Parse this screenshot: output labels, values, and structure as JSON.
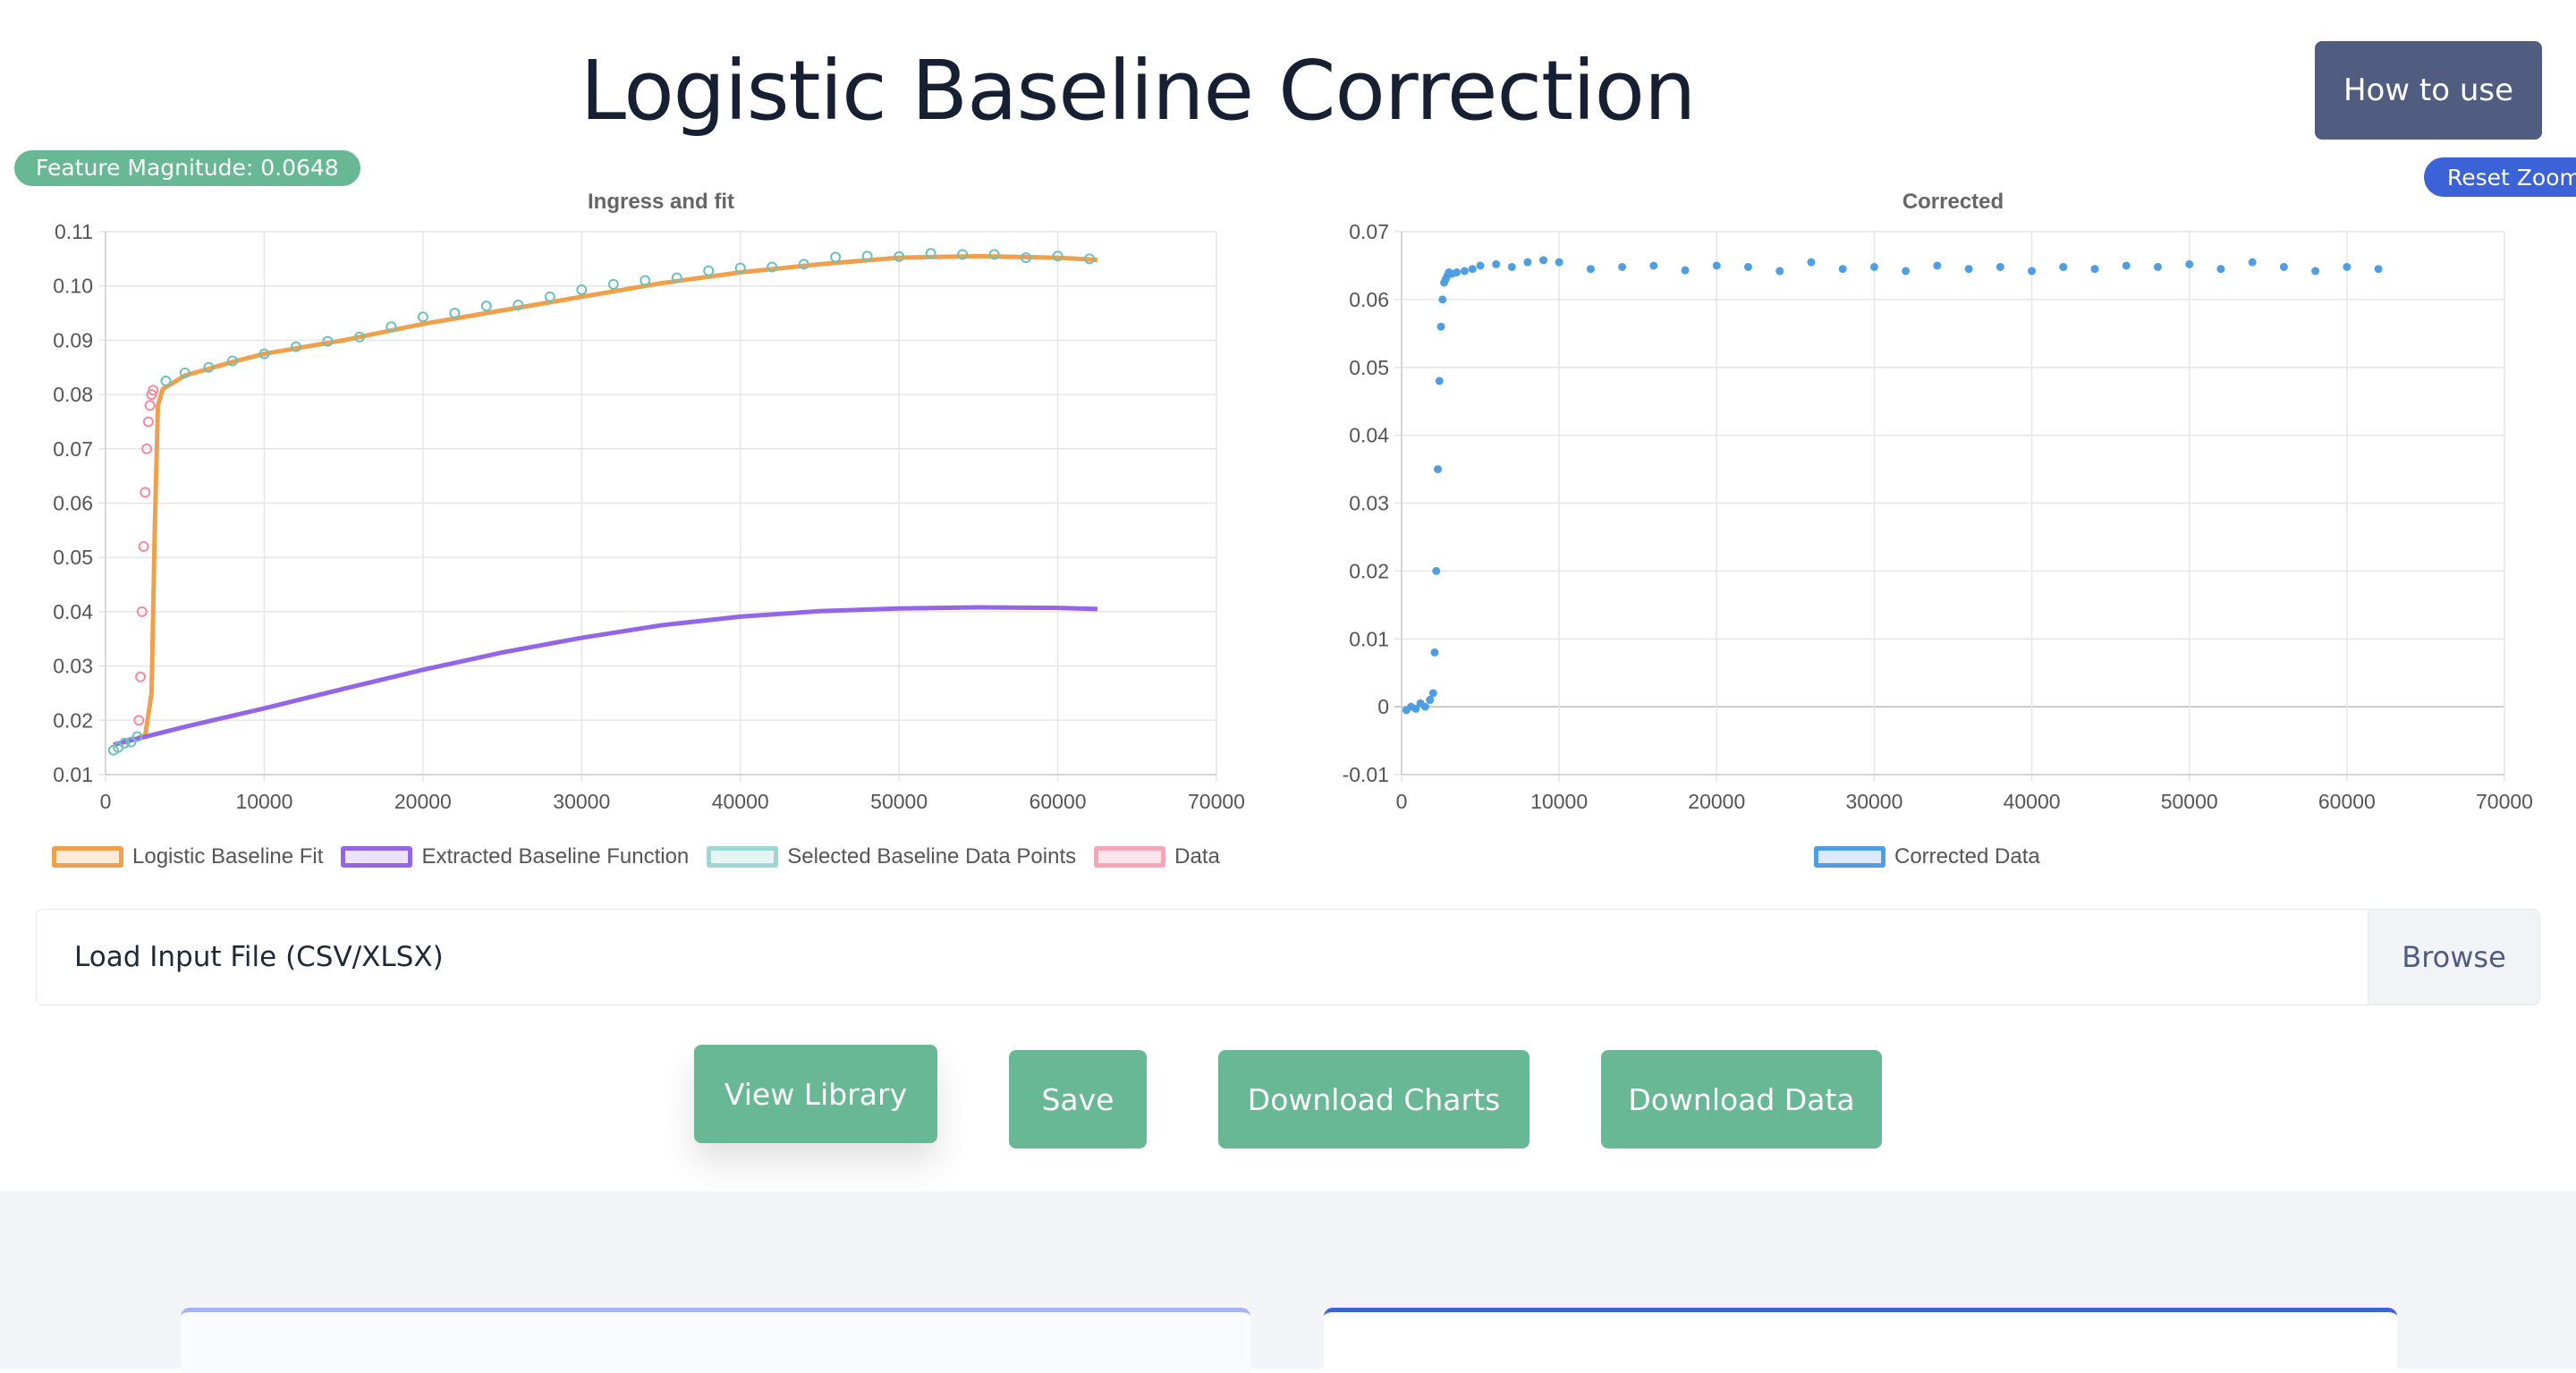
{
  "header": {
    "title": "Logistic Baseline Correction",
    "how_to_label": "How to use"
  },
  "feature_badge": "Feature Magnitude: 0.0648",
  "reset_zoom_label": "Reset Zoom",
  "file_input": {
    "label": "Load Input File (CSV/XLSX)",
    "browse_label": "Browse"
  },
  "actions": {
    "view_library": "View Library",
    "save": "Save",
    "download_charts": "Download Charts",
    "download_data": "Download Data"
  },
  "colors": {
    "logistic_fit": "#f0a04b",
    "extracted_baseline": "#9465e8",
    "selected_points": "#6fbfbd",
    "data": "#f08ca0",
    "corrected": "#4f9ee3"
  },
  "chart_data": [
    {
      "type": "scatter",
      "title": "Ingress and fit",
      "xlim": [
        0,
        70000
      ],
      "ylim": [
        0.01,
        0.11
      ],
      "xticks": [
        "0",
        "10000",
        "20000",
        "30000",
        "40000",
        "50000",
        "60000",
        "70000"
      ],
      "yticks": [
        "0.01",
        "0.02",
        "0.03",
        "0.04",
        "0.05",
        "0.06",
        "0.07",
        "0.08",
        "0.09",
        "0.10",
        "0.11"
      ],
      "grid": true,
      "legend_position": "bottom",
      "series": [
        {
          "name": "Logistic Baseline Fit",
          "kind": "line",
          "x": [
            500,
            1500,
            2500,
            2900,
            3100,
            3300,
            3600,
            5000,
            8000,
            10000,
            15000,
            20000,
            25000,
            30000,
            35000,
            40000,
            45000,
            50000,
            55000,
            60000,
            62500
          ],
          "y": [
            0.0155,
            0.0162,
            0.0172,
            0.025,
            0.055,
            0.078,
            0.081,
            0.0835,
            0.086,
            0.0875,
            0.09,
            0.093,
            0.0955,
            0.098,
            0.1005,
            0.1025,
            0.104,
            0.1052,
            0.1055,
            0.1052,
            0.1048
          ]
        },
        {
          "name": "Extracted Baseline Function",
          "kind": "line",
          "x": [
            500,
            5000,
            10000,
            15000,
            20000,
            25000,
            30000,
            35000,
            40000,
            45000,
            50000,
            55000,
            60000,
            62500
          ],
          "y": [
            0.0155,
            0.0188,
            0.0222,
            0.0258,
            0.0293,
            0.0325,
            0.0352,
            0.0375,
            0.0391,
            0.0401,
            0.0406,
            0.0408,
            0.0407,
            0.0405
          ]
        },
        {
          "name": "Selected Baseline Data Points",
          "kind": "scatter",
          "x": [
            500,
            800,
            1200,
            1600,
            2000,
            3800,
            5000,
            6500,
            8000,
            10000,
            12000,
            14000,
            16000,
            18000,
            20000,
            22000,
            24000,
            26000,
            28000,
            30000,
            32000,
            34000,
            36000,
            38000,
            40000,
            42000,
            44000,
            46000,
            48000,
            50000,
            52000,
            54000,
            56000,
            58000,
            60000,
            62000
          ],
          "y": [
            0.0145,
            0.015,
            0.0158,
            0.016,
            0.017,
            0.0825,
            0.084,
            0.085,
            0.0862,
            0.0875,
            0.0888,
            0.0898,
            0.0906,
            0.0925,
            0.0943,
            0.095,
            0.0963,
            0.0965,
            0.098,
            0.0993,
            0.1003,
            0.101,
            0.1015,
            0.1028,
            0.1033,
            0.1035,
            0.104,
            0.1053,
            0.1055,
            0.1054,
            0.106,
            0.1058,
            0.1058,
            0.1052,
            0.1055,
            0.105
          ]
        },
        {
          "name": "Data",
          "kind": "scatter",
          "x": [
            2100,
            2200,
            2300,
            2400,
            2500,
            2600,
            2700,
            2800,
            2900,
            3000
          ],
          "y": [
            0.02,
            0.028,
            0.04,
            0.052,
            0.062,
            0.07,
            0.075,
            0.078,
            0.08,
            0.0808
          ]
        }
      ]
    },
    {
      "type": "scatter",
      "title": "Corrected",
      "xlim": [
        0,
        70000
      ],
      "ylim": [
        -0.01,
        0.07
      ],
      "xticks": [
        "0",
        "10000",
        "20000",
        "30000",
        "40000",
        "50000",
        "60000",
        "70000"
      ],
      "yticks": [
        "-0.01",
        "0",
        "0.01",
        "0.02",
        "0.03",
        "0.04",
        "0.05",
        "0.06",
        "0.07"
      ],
      "grid": true,
      "legend_position": "bottom",
      "series": [
        {
          "name": "Corrected Data",
          "kind": "scatter",
          "x": [
            300,
            600,
            900,
            1200,
            1500,
            1800,
            2000,
            2100,
            2200,
            2300,
            2400,
            2500,
            2600,
            2700,
            2800,
            2900,
            3000,
            3200,
            3500,
            4000,
            4500,
            5000,
            6000,
            7000,
            8000,
            9000,
            10000,
            12000,
            14000,
            16000,
            18000,
            20000,
            22000,
            24000,
            26000,
            28000,
            30000,
            32000,
            34000,
            36000,
            38000,
            40000,
            42000,
            44000,
            46000,
            48000,
            50000,
            52000,
            54000,
            56000,
            58000,
            60000,
            62000
          ],
          "y": [
            -0.0005,
            0.0,
            -0.0003,
            0.0005,
            0.0,
            0.001,
            0.002,
            0.008,
            0.02,
            0.035,
            0.048,
            0.056,
            0.06,
            0.0625,
            0.063,
            0.0635,
            0.064,
            0.0638,
            0.064,
            0.0642,
            0.0645,
            0.065,
            0.0652,
            0.0648,
            0.0655,
            0.0658,
            0.0655,
            0.0645,
            0.0648,
            0.065,
            0.0643,
            0.065,
            0.0648,
            0.0642,
            0.0655,
            0.0645,
            0.0648,
            0.0642,
            0.065,
            0.0645,
            0.0648,
            0.0642,
            0.0648,
            0.0645,
            0.065,
            0.0648,
            0.0652,
            0.0645,
            0.0655,
            0.0648,
            0.0642,
            0.0648,
            0.0645
          ]
        }
      ]
    }
  ]
}
